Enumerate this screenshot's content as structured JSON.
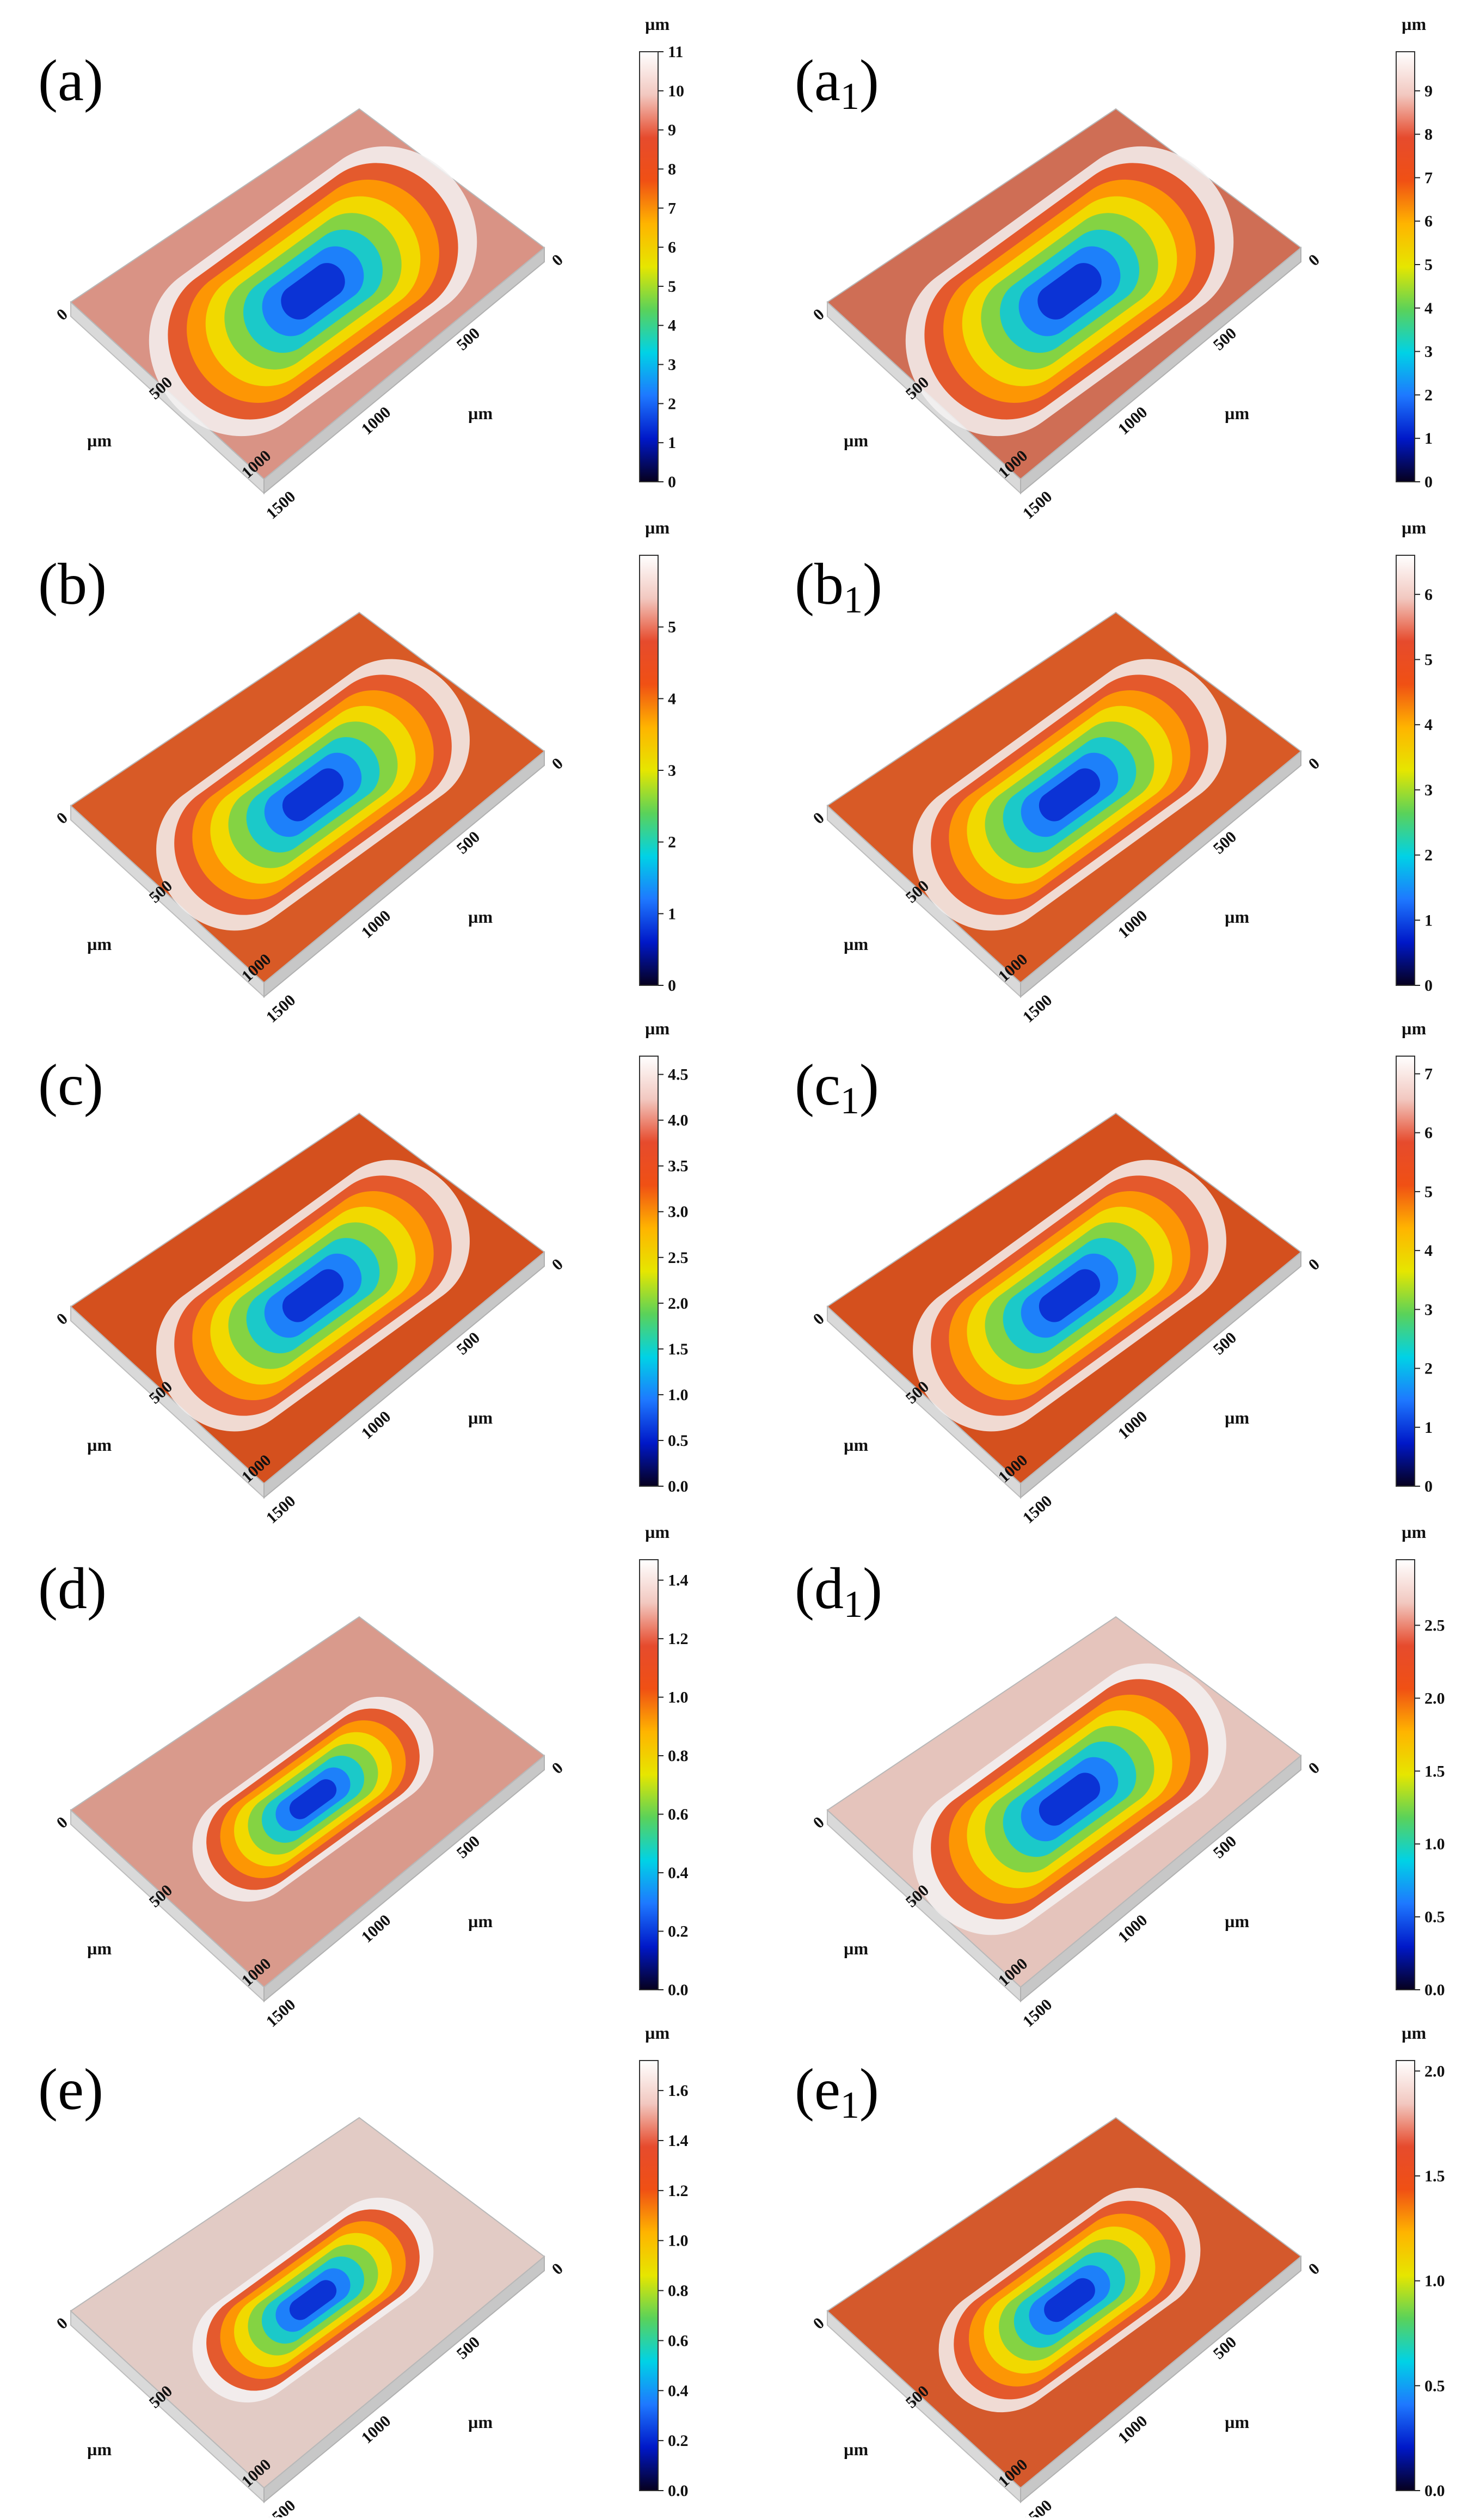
{
  "unit": "µm",
  "colormap": [
    "#06001e",
    "#0018c8",
    "#1e78ff",
    "#00d2e6",
    "#5ad25a",
    "#e6e600",
    "#ffb400",
    "#f05014",
    "#e64b2d",
    "#f2c8c0",
    "#ffffff"
  ],
  "panels": [
    {
      "id": "a",
      "letter": "a",
      "subscript": "",
      "scale_ticks": [
        "0",
        "1",
        "2",
        "3",
        "4",
        "5",
        "6",
        "7",
        "8",
        "9",
        "10",
        "11"
      ],
      "scale_max": 11,
      "surface_color": "#d99385",
      "wear_shape": "broad-oval"
    },
    {
      "id": "a1",
      "letter": "a",
      "subscript": "1",
      "scale_ticks": [
        "0",
        "1",
        "2",
        "3",
        "4",
        "5",
        "6",
        "7",
        "8",
        "9"
      ],
      "scale_max": 9.9,
      "surface_color": "#cf6e55",
      "wear_shape": "broad-oval"
    },
    {
      "id": "b",
      "letter": "b",
      "subscript": "",
      "scale_ticks": [
        "0",
        "1",
        "2",
        "3",
        "4",
        "5"
      ],
      "scale_max": 6,
      "surface_color": "#d85a26",
      "wear_shape": "oval"
    },
    {
      "id": "b1",
      "letter": "b",
      "subscript": "1",
      "scale_ticks": [
        "0",
        "1",
        "2",
        "3",
        "4",
        "5",
        "6"
      ],
      "scale_max": 6.6,
      "surface_color": "#d85a26",
      "wear_shape": "oval"
    },
    {
      "id": "c",
      "letter": "c",
      "subscript": "",
      "scale_ticks": [
        "0.0",
        "0.5",
        "1.0",
        "1.5",
        "2.0",
        "2.5",
        "3.0",
        "3.5",
        "4.0",
        "4.5"
      ],
      "scale_max": 4.7,
      "surface_color": "#d4501e",
      "wear_shape": "oval"
    },
    {
      "id": "c1",
      "letter": "c",
      "subscript": "1",
      "scale_ticks": [
        "0",
        "1",
        "2",
        "3",
        "4",
        "5",
        "6",
        "7"
      ],
      "scale_max": 7.3,
      "surface_color": "#d4501e",
      "wear_shape": "oval"
    },
    {
      "id": "d",
      "letter": "d",
      "subscript": "",
      "scale_ticks": [
        "0.0",
        "0.2",
        "0.4",
        "0.6",
        "0.8",
        "1.0",
        "1.2",
        "1.4"
      ],
      "scale_max": 1.47,
      "surface_color": "#d99a8c",
      "wear_shape": "narrow-capsule"
    },
    {
      "id": "d1",
      "letter": "d",
      "subscript": "1",
      "scale_ticks": [
        "0.0",
        "0.5",
        "1.0",
        "1.5",
        "2.0",
        "2.5"
      ],
      "scale_max": 2.95,
      "surface_color": "#e5c4bc",
      "wear_shape": "oval"
    },
    {
      "id": "e",
      "letter": "e",
      "subscript": "",
      "scale_ticks": [
        "0.0",
        "0.2",
        "0.4",
        "0.6",
        "0.8",
        "1.0",
        "1.2",
        "1.4",
        "1.6"
      ],
      "scale_max": 1.72,
      "surface_color": "#e2cbc5",
      "wear_shape": "narrow-capsule"
    },
    {
      "id": "e1",
      "letter": "e",
      "subscript": "1",
      "scale_ticks": [
        "0.0",
        "0.5",
        "1.0",
        "1.5",
        "2.0"
      ],
      "scale_max": 2.05,
      "surface_color": "#d4592c",
      "wear_shape": "capsule"
    }
  ],
  "axis_ticks_right": [
    "0",
    "500",
    "1000",
    "1500"
  ],
  "axis_ticks_left": [
    "0",
    "500",
    "1000"
  ]
}
